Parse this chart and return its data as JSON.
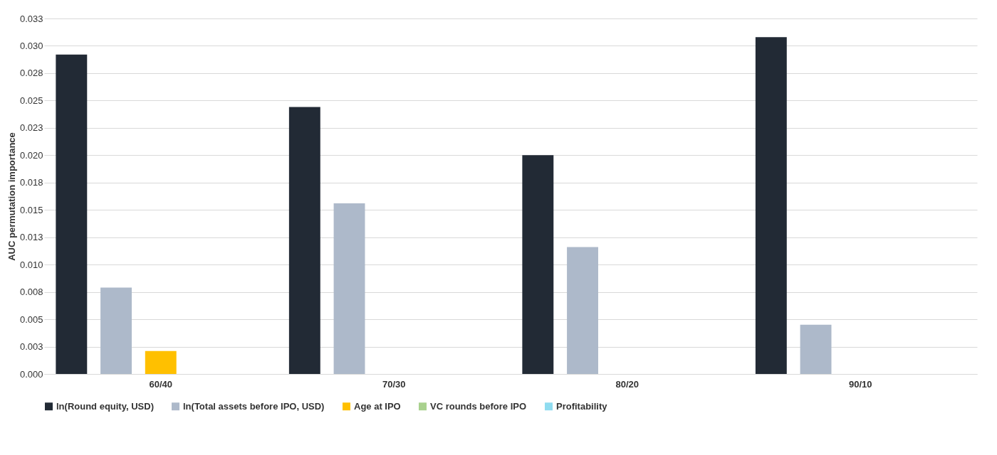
{
  "chart_data": {
    "type": "bar",
    "ylabel": "AUC permutation importance",
    "categories": [
      "60/40",
      "70/30",
      "80/20",
      "90/10"
    ],
    "series": [
      {
        "name": "ln(Round equity, USD)",
        "color": "#222a35",
        "values": [
          0.0292,
          0.0244,
          0.02,
          0.0308
        ]
      },
      {
        "name": "ln(Total assets before IPO, USD)",
        "color": "#adb9ca",
        "values": [
          0.0079,
          0.0156,
          0.0116,
          0.0045
        ]
      },
      {
        "name": "Age at IPO",
        "color": "#ffc000",
        "values": [
          0.0021,
          0,
          0,
          0
        ]
      },
      {
        "name": "VC rounds before IPO",
        "color": "#a9d18e",
        "values": [
          0,
          0,
          0,
          0
        ]
      },
      {
        "name": "Profitability",
        "color": "#8fdcf0",
        "values": [
          0,
          0,
          0,
          0
        ]
      }
    ],
    "ylim": [
      0,
      0.0325
    ],
    "yticks": [
      {
        "value": 0,
        "label": "0.000"
      },
      {
        "value": 0.0025,
        "label": "0.003"
      },
      {
        "value": 0.005,
        "label": "0.005"
      },
      {
        "value": 0.0075,
        "label": "0.008"
      },
      {
        "value": 0.01,
        "label": "0.010"
      },
      {
        "value": 0.0125,
        "label": "0.013"
      },
      {
        "value": 0.015,
        "label": "0.015"
      },
      {
        "value": 0.0175,
        "label": "0.018"
      },
      {
        "value": 0.02,
        "label": "0.020"
      },
      {
        "value": 0.0225,
        "label": "0.023"
      },
      {
        "value": 0.025,
        "label": "0.025"
      },
      {
        "value": 0.0275,
        "label": "0.028"
      },
      {
        "value": 0.03,
        "label": "0.030"
      },
      {
        "value": 0.0325,
        "label": "0.033"
      }
    ],
    "grid": "y",
    "legend": "bottom"
  }
}
